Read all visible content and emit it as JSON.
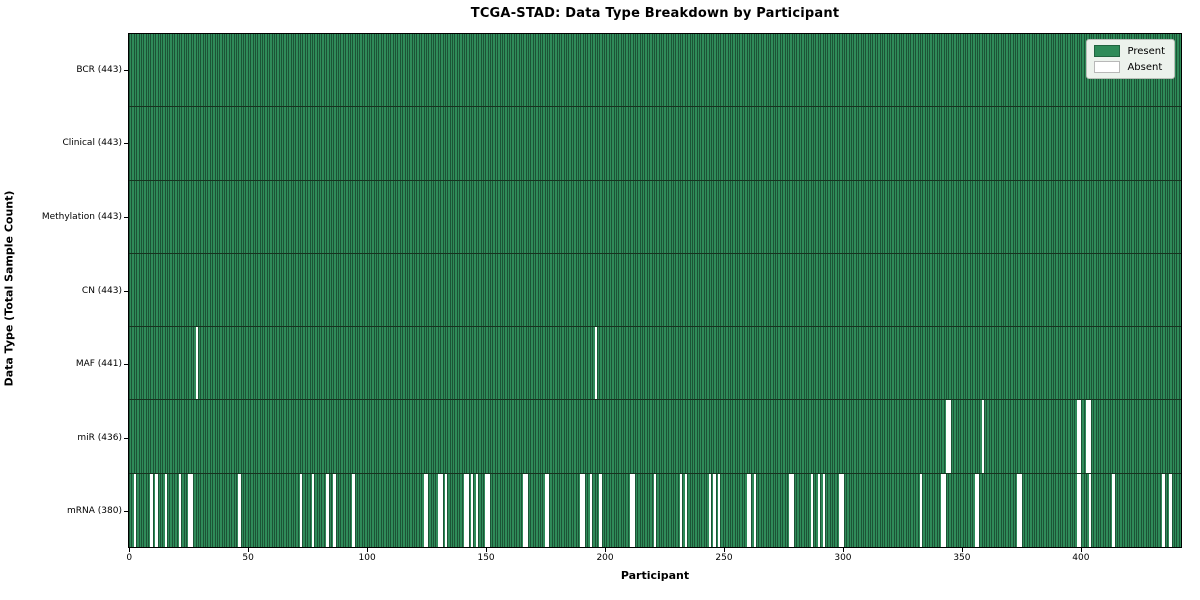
{
  "title": "TCGA-STAD: Data Type Breakdown by Participant",
  "legend": {
    "present_label": "Present",
    "absent_label": "Absent"
  },
  "chart_data": {
    "type": "heatmap",
    "title": "TCGA-STAD: Data Type Breakdown by Participant",
    "xlabel": "Participant",
    "ylabel": "Data Type (Total Sample Count)",
    "n_participants": 443,
    "x_ticks": [
      0,
      50,
      100,
      150,
      200,
      250,
      300,
      350,
      400
    ],
    "grid": false,
    "legend_entries": [
      "Present",
      "Absent"
    ],
    "legend_position": "upper right",
    "colors": {
      "present": "#2f8b59",
      "absent": "#ffffff",
      "cell_edge": "#16331f"
    },
    "rows": [
      {
        "data_type": "BCR",
        "label": "BCR (443)",
        "present_count": 443,
        "absent_participants": []
      },
      {
        "data_type": "Clinical",
        "label": "Clinical (443)",
        "present_count": 443,
        "absent_participants": []
      },
      {
        "data_type": "Methylation",
        "label": "Methylation (443)",
        "present_count": 443,
        "absent_participants": []
      },
      {
        "data_type": "CN",
        "label": "CN (443)",
        "present_count": 443,
        "absent_participants": []
      },
      {
        "data_type": "MAF",
        "label": "MAF (441)",
        "present_count": 441,
        "absent_participants": [
          28,
          196
        ]
      },
      {
        "data_type": "miR",
        "label": "miR (436)",
        "present_count": 436,
        "absent_participants": [
          344,
          345,
          359,
          399,
          400,
          403,
          404
        ]
      },
      {
        "data_type": "mRNA",
        "label": "mRNA (380)",
        "present_count": 380,
        "absent_participants": [
          2,
          9,
          11,
          15,
          21,
          25,
          26,
          46,
          72,
          77,
          83,
          86,
          94,
          124,
          125,
          130,
          131,
          133,
          141,
          142,
          144,
          146,
          150,
          151,
          166,
          167,
          175,
          176,
          190,
          191,
          194,
          198,
          211,
          212,
          221,
          232,
          234,
          244,
          246,
          248,
          260,
          261,
          263,
          278,
          279,
          287,
          290,
          292,
          299,
          300,
          333,
          342,
          343,
          356,
          357,
          374,
          375,
          399,
          400,
          404,
          414,
          435,
          438
        ]
      }
    ]
  }
}
